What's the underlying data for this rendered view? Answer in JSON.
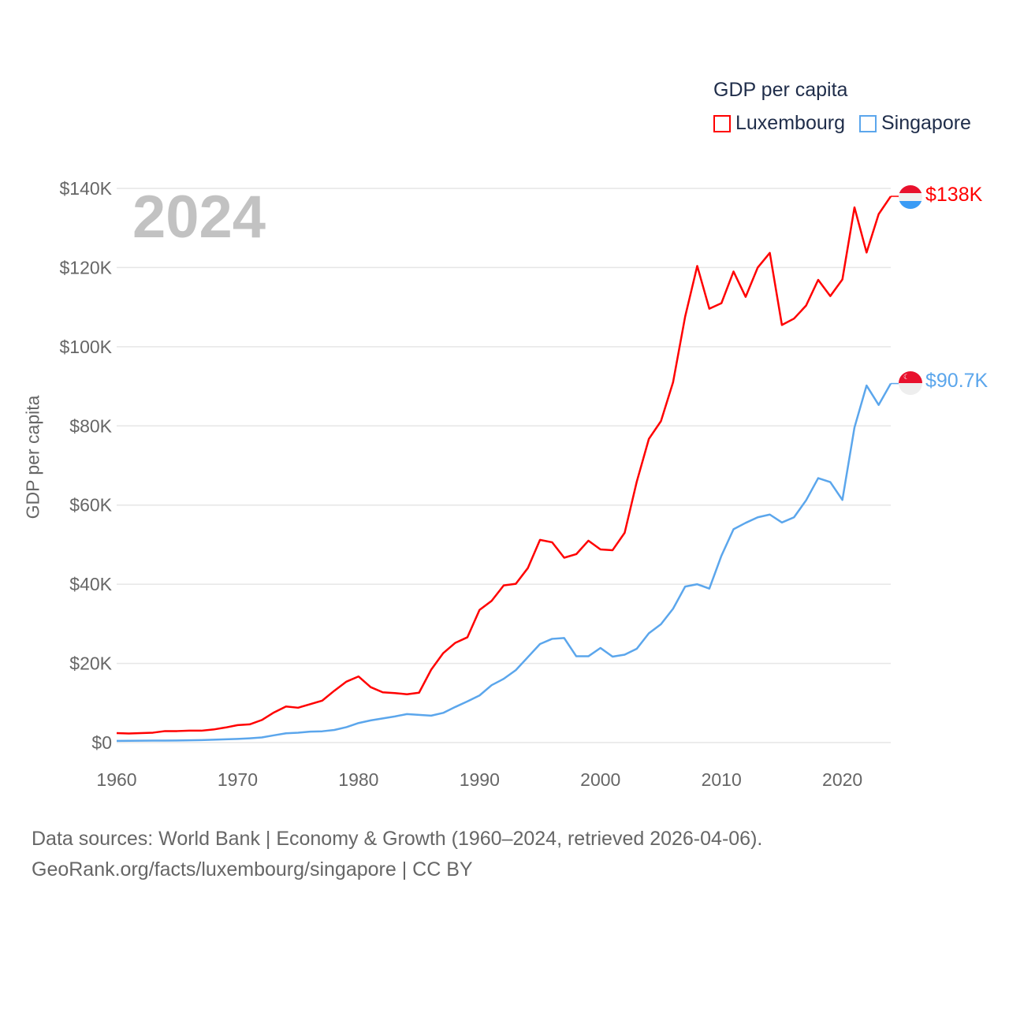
{
  "chart_data": {
    "type": "line",
    "title": "GDP per capita",
    "xlabel": "",
    "ylabel": "GDP per capita",
    "current_year": "2024",
    "xlim": [
      1960,
      2024
    ],
    "ylim": [
      0,
      140000
    ],
    "x_ticks": [
      1960,
      1970,
      1980,
      1990,
      2000,
      2010,
      2020
    ],
    "y_ticks": [
      0,
      20000,
      40000,
      60000,
      80000,
      100000,
      120000,
      140000
    ],
    "y_tick_labels": [
      "$0",
      "$20K",
      "$40K",
      "$60K",
      "$80K",
      "$100K",
      "$120K",
      "$140K"
    ],
    "grid": true,
    "legend_position": "top-right",
    "series": [
      {
        "name": "Luxembourg",
        "color": "#ff0000",
        "end_label": "$138K",
        "values": [
          2.4,
          2.3,
          2.4,
          2.5,
          2.9,
          2.9,
          3.0,
          3.0,
          3.3,
          3.8,
          4.4,
          4.6,
          5.7,
          7.6,
          9.1,
          8.8,
          9.7,
          10.6,
          13.1,
          15.4,
          16.7,
          14.0,
          12.7,
          12.5,
          12.2,
          12.6,
          18.4,
          22.6,
          25.2,
          26.6,
          33.5,
          35.8,
          39.7,
          40.1,
          44.1,
          51.2,
          50.6,
          46.7,
          47.6,
          51.0,
          48.8,
          48.6,
          53.0,
          65.9,
          76.7,
          81.2,
          91.0,
          107.6,
          120.4,
          109.6,
          111.0,
          119.0,
          112.6,
          120.0,
          123.7,
          105.5,
          107.1,
          110.4,
          116.9,
          112.8,
          117.0,
          135.2,
          123.8,
          133.5,
          138.0
        ]
      },
      {
        "name": "Singapore",
        "color": "#5ba6ec",
        "end_label": "$90.7K",
        "values": [
          0.43,
          0.45,
          0.47,
          0.51,
          0.49,
          0.52,
          0.57,
          0.63,
          0.71,
          0.81,
          0.93,
          1.08,
          1.29,
          1.83,
          2.34,
          2.49,
          2.76,
          2.85,
          3.19,
          3.9,
          4.93,
          5.6,
          6.1,
          6.6,
          7.2,
          7.0,
          6.8,
          7.5,
          9.0,
          10.4,
          11.9,
          14.5,
          16.1,
          18.3,
          21.6,
          24.9,
          26.2,
          26.4,
          21.8,
          21.8,
          23.9,
          21.7,
          22.2,
          23.7,
          27.6,
          29.9,
          33.8,
          39.4,
          40.0,
          38.9,
          47.2,
          53.9,
          55.5,
          56.9,
          57.6,
          55.6,
          56.9,
          61.2,
          66.8,
          65.8,
          61.3,
          79.6,
          90.2,
          85.3,
          90.7
        ]
      }
    ],
    "values_unit": "thousand US$"
  },
  "footer": {
    "line1": "Data sources: World Bank | Economy & Growth (1960–2024, retrieved 2026-04-06).",
    "line2": "GeoRank.org/facts/luxembourg/singapore | CC BY"
  }
}
